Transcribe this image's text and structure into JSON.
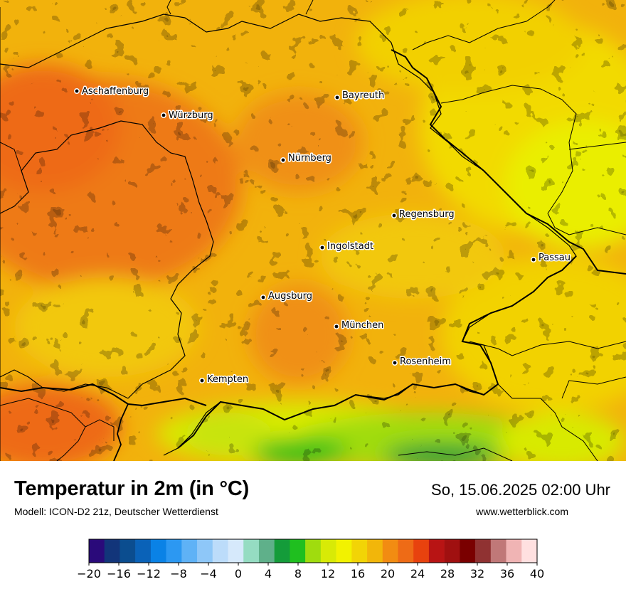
{
  "map": {
    "cities": [
      {
        "name": "Aschaffenburg"
      },
      {
        "name": "Würzburg"
      },
      {
        "name": "Bayreuth"
      },
      {
        "name": "Nürnberg"
      },
      {
        "name": "Regensburg"
      },
      {
        "name": "Ingolstadt"
      },
      {
        "name": "Passau"
      },
      {
        "name": "Augsburg"
      },
      {
        "name": "München"
      },
      {
        "name": "Rosenheim"
      },
      {
        "name": "Kempten"
      }
    ]
  },
  "footer": {
    "title": "Temperatur in 2m (in °C)",
    "subtitle": "Modell: ICON-D2 21z, Deutscher Wetterdienst",
    "datetime": "So, 15.06.2025 02:00 Uhr",
    "website": "www.wetterblick.com"
  },
  "legend": {
    "ticks": [
      "−20",
      "−16",
      "−12",
      "−8",
      "−4",
      "0",
      "4",
      "8",
      "12",
      "16",
      "20",
      "24",
      "28",
      "32",
      "36",
      "40"
    ],
    "colors": [
      "#2a0a7a",
      "#12357a",
      "#0b4d8f",
      "#0a62b8",
      "#0a82e6",
      "#2c98f2",
      "#5fb2f6",
      "#8ec7f8",
      "#bcdcfa",
      "#d6e9fb",
      "#95dcc2",
      "#5fb08a",
      "#149c3a",
      "#1fbf1f",
      "#a0dc0e",
      "#d8ea06",
      "#f2f200",
      "#f2d406",
      "#f2b60a",
      "#f28c12",
      "#ee6b16",
      "#e8420e",
      "#b81414",
      "#a01010",
      "#7a0000",
      "#903232",
      "#c07878",
      "#f0b4b4",
      "#ffe0e0"
    ]
  }
}
